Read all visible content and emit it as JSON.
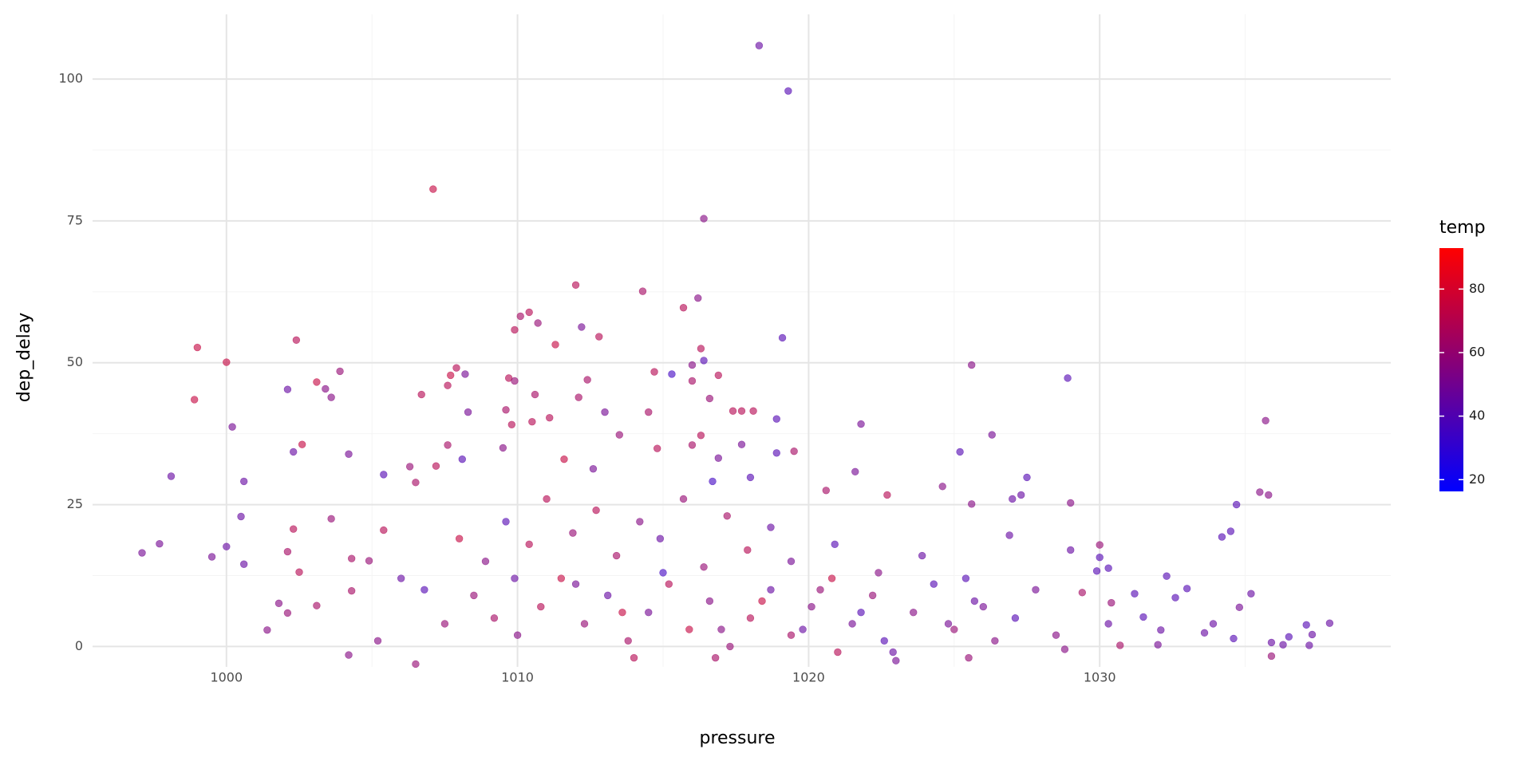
{
  "chart_data": {
    "type": "scatter",
    "x_label": "pressure",
    "y_label": "dep_delay",
    "xlim": [
      995.4,
      1040
    ],
    "ylim": [
      -3.6,
      111.4
    ],
    "xticks": [
      1000,
      1010,
      1020,
      1030
    ],
    "yticks": [
      0,
      25,
      50,
      75,
      100
    ],
    "grid": true,
    "minor_grid": true,
    "opacity": 0.6,
    "color_scale": {
      "title": "temp",
      "lim": [
        16.3,
        92.9
      ],
      "ticks": [
        20,
        40,
        60,
        80
      ],
      "low_color": "#0000ff",
      "high_color": "#ff0000"
    },
    "series": [
      {
        "x": [
          1018.3,
          1019.3,
          1007.1,
          1016.4,
          1012.0,
          1014.3,
          1016.2,
          1015.7,
          1010.4,
          1010.1,
          1010.7,
          1012.2,
          1009.9,
          1012.8,
          1002.4,
          1019.1,
          999.0,
          1011.3,
          1016.3,
          1016.4,
          1000.0,
          1025.6,
          1016.0,
          1008.2,
          1003.9,
          1015.3,
          1014.7,
          1016.9,
          1007.9,
          1007.7,
          1028.9,
          1009.7,
          1012.4,
          1003.1,
          1016.0,
          1007.6,
          1002.1,
          1003.4,
          1009.9,
          998.9,
          1003.6,
          1006.7,
          1010.6,
          1012.1,
          1016.6,
          1017.4,
          1017.7,
          1018.1,
          1014.5,
          1013.0,
          1008.3,
          1009.6,
          1010.5,
          1011.1,
          1035.7,
          1018.9,
          1021.8,
          1000.2,
          1009.8,
          1016.3,
          1026.3,
          1013.5,
          1007.6,
          1002.6,
          1016.0,
          1017.7,
          1014.8,
          1019.5,
          1018.9,
          1002.3,
          1004.2,
          1025.2,
          1009.5,
          1016.9,
          1011.6,
          1008.1,
          1006.3,
          1012.6,
          1007.2,
          1021.6,
          998.1,
          1005.4,
          1018.0,
          1027.5,
          1016.7,
          1000.6,
          1006.5,
          1024.6,
          1020.6,
          1022.7,
          1027.3,
          1035.5,
          1035.8,
          1027.0,
          1029.0,
          1034.7,
          1025.6,
          1034.5,
          1034.2,
          1026.9,
          1000.5,
          1003.6,
          1002.3,
          1000.0,
          999.5,
          997.7,
          997.1,
          1002.1,
          1004.3,
          1000.6,
          1002.5,
          1001.4,
          1001.8,
          1002.1,
          1003.1,
          1004.2,
          1006.5,
          1004.3,
          1004.9,
          1005.4,
          1037.1,
          1037.9,
          1036.3,
          1035.9,
          1036.5,
          1037.3,
          1035.9,
          1037.2,
          1035.2,
          1034.8,
          1034.6,
          1033.9,
          1033.6,
          1033.0,
          1032.6,
          1032.3,
          1032.1,
          1031.2,
          1031.5,
          1032.0,
          1030.7,
          1030.3,
          1030.4,
          1030.0,
          1030.0,
          1030.3,
          1029.9,
          1029.0,
          1029.4,
          1008.5,
          1009.2,
          1010.0,
          1010.8,
          1011.5,
          1012.3,
          1013.1,
          1013.8,
          1014.5,
          1015.2,
          1015.9,
          1016.6,
          1017.3,
          1018.0,
          1018.7,
          1019.4,
          1020.1,
          1020.8,
          1021.5,
          1022.2,
          1022.9,
          1023.6,
          1024.3,
          1025.0,
          1025.7,
          1026.4,
          1027.1,
          1027.8,
          1028.5,
          1008.9,
          1010.4,
          1011.9,
          1013.4,
          1014.9,
          1016.4,
          1017.9,
          1019.4,
          1020.9,
          1022.4,
          1023.9,
          1025.4,
          1012.7,
          1014.2,
          1015.7,
          1017.2,
          1018.7,
          1011.0,
          1009.6,
          1008.0,
          1006.8,
          1007.5,
          1006.0,
          1005.2,
          1014.0,
          1016.8,
          1021.0,
          1023.0,
          1025.5,
          1028.8,
          1019.8,
          1018.4,
          1015.0,
          1012.0,
          1021.8,
          1024.8,
          1009.9,
          1013.6,
          1017.0,
          1020.4,
          1022.6,
          1026.0
        ],
        "values": [
          105.9,
          97.9,
          80.6,
          75.4,
          63.7,
          62.6,
          61.4,
          59.7,
          58.9,
          58.2,
          57.0,
          56.3,
          55.8,
          54.6,
          54.0,
          54.4,
          52.7,
          53.2,
          52.5,
          50.4,
          50.1,
          49.6,
          49.6,
          48.0,
          48.5,
          48.0,
          48.4,
          47.8,
          49.1,
          47.8,
          47.3,
          47.3,
          47.0,
          46.6,
          46.8,
          46.0,
          45.3,
          45.4,
          46.8,
          43.5,
          43.9,
          44.4,
          44.4,
          43.9,
          43.7,
          41.5,
          41.5,
          41.5,
          41.3,
          41.3,
          41.3,
          41.7,
          39.6,
          40.3,
          39.8,
          40.1,
          39.2,
          38.7,
          39.1,
          37.2,
          37.3,
          37.3,
          35.5,
          35.6,
          35.5,
          35.6,
          34.9,
          34.4,
          34.1,
          34.3,
          33.9,
          34.3,
          35.0,
          33.2,
          33.0,
          33.0,
          31.7,
          31.3,
          31.8,
          30.8,
          30.0,
          30.3,
          29.8,
          29.8,
          29.1,
          29.1,
          28.9,
          28.2,
          27.5,
          26.7,
          26.7,
          27.2,
          26.7,
          26.0,
          25.3,
          25.0,
          25.1,
          20.3,
          19.3,
          19.6,
          22.9,
          22.5,
          20.7,
          17.6,
          15.8,
          18.1,
          16.5,
          16.7,
          15.5,
          14.5,
          13.1,
          2.9,
          7.6,
          5.9,
          7.2,
          -1.5,
          -3.1,
          9.8,
          15.1,
          20.5,
          3.8,
          4.1,
          0.3,
          0.7,
          1.7,
          2.1,
          -1.7,
          0.2,
          9.3,
          6.9,
          1.4,
          4.0,
          2.4,
          10.2,
          8.6,
          12.4,
          2.9,
          9.3,
          5.2,
          0.3,
          0.2,
          4.0,
          7.7,
          17.9,
          15.7,
          13.8,
          13.3,
          17.0,
          9.5,
          9,
          5,
          2,
          7,
          12,
          4,
          9,
          1,
          6,
          11,
          3,
          8,
          0,
          5,
          10,
          2,
          7,
          12,
          4,
          9,
          -1,
          6,
          11,
          3,
          8,
          1,
          5,
          10,
          2,
          15,
          18,
          20,
          16,
          19,
          14,
          17,
          15,
          18,
          13,
          16,
          12,
          24,
          22,
          26,
          23,
          21,
          26,
          22,
          19,
          10,
          4,
          12,
          1,
          -2,
          -2,
          -1,
          -2.5,
          -2,
          -0.5,
          3,
          8,
          13,
          11,
          6,
          4,
          12,
          6,
          3,
          10,
          1,
          7
        ],
        "temp": [
          45,
          40,
          75,
          55,
          70,
          65,
          55,
          70,
          70,
          65,
          60,
          50,
          70,
          70,
          70,
          40,
          75,
          75,
          70,
          40,
          75,
          55,
          55,
          50,
          60,
          35,
          70,
          70,
          70,
          75,
          40,
          70,
          65,
          75,
          65,
          70,
          45,
          55,
          60,
          75,
          55,
          70,
          65,
          65,
          60,
          70,
          70,
          70,
          65,
          50,
          50,
          65,
          70,
          70,
          55,
          40,
          50,
          50,
          70,
          70,
          50,
          60,
          65,
          75,
          65,
          50,
          70,
          65,
          40,
          45,
          50,
          40,
          55,
          50,
          75,
          40,
          60,
          50,
          70,
          50,
          45,
          40,
          40,
          40,
          35,
          45,
          65,
          55,
          65,
          70,
          45,
          55,
          55,
          45,
          55,
          40,
          55,
          40,
          40,
          45,
          45,
          60,
          70,
          45,
          50,
          50,
          50,
          65,
          65,
          45,
          70,
          55,
          55,
          60,
          65,
          55,
          60,
          65,
          60,
          70,
          40,
          45,
          45,
          45,
          40,
          45,
          60,
          45,
          45,
          50,
          40,
          45,
          45,
          40,
          40,
          40,
          45,
          40,
          40,
          50,
          65,
          45,
          60,
          60,
          40,
          40,
          40,
          45,
          65,
          60,
          65,
          55,
          70,
          75,
          60,
          45,
          65,
          50,
          70,
          75,
          55,
          60,
          70,
          45,
          65,
          55,
          75,
          50,
          60,
          45,
          55,
          40,
          60,
          45,
          55,
          40,
          50,
          55,
          55,
          70,
          60,
          65,
          45,
          60,
          70,
          50,
          40,
          55,
          45,
          40,
          70,
          55,
          60,
          65,
          45,
          70,
          40,
          75,
          40,
          60,
          45,
          55,
          70,
          65,
          70,
          50,
          60,
          55,
          45,
          75,
          35,
          50,
          40,
          50,
          45,
          75,
          55,
          60,
          40,
          50
        ]
      }
    ]
  }
}
